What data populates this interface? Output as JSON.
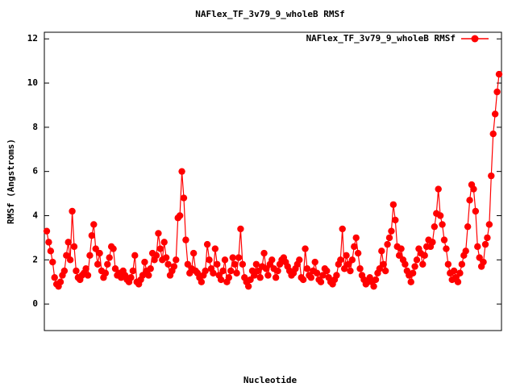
{
  "chart_data": {
    "type": "line",
    "title": "NAFlex_TF_3v79_9_wholeB RMSf",
    "x_label": "Nucleotide",
    "y_label": "RMSf (Angstroms)",
    "ylim": [
      -1.2,
      12.3
    ],
    "yticks": [
      0,
      2,
      4,
      6,
      8,
      10,
      12
    ],
    "legend": "top-right",
    "series": [
      {
        "name": "NAFlex_TF_3v79_9_wholeB RMSf",
        "color": "#ff0000",
        "values": [
          3.3,
          2.8,
          2.4,
          1.9,
          1.2,
          0.9,
          0.8,
          1.0,
          1.3,
          1.5,
          2.2,
          2.8,
          2.0,
          4.2,
          2.6,
          1.5,
          1.2,
          1.1,
          1.3,
          1.4,
          1.6,
          1.3,
          2.2,
          3.1,
          3.6,
          2.5,
          1.8,
          2.3,
          1.5,
          1.2,
          1.4,
          1.8,
          2.1,
          2.6,
          2.5,
          1.6,
          1.3,
          1.4,
          1.2,
          1.5,
          1.3,
          1.1,
          1.0,
          1.2,
          1.5,
          2.2,
          1.0,
          0.9,
          1.1,
          1.3,
          1.9,
          1.5,
          1.3,
          1.6,
          2.3,
          2.0,
          2.2,
          3.2,
          2.5,
          2.0,
          2.8,
          2.1,
          1.8,
          1.3,
          1.5,
          1.7,
          2.0,
          3.9,
          4.0,
          6.0,
          4.8,
          2.9,
          1.8,
          1.4,
          1.6,
          2.3,
          1.5,
          1.4,
          1.2,
          1.0,
          1.3,
          1.5,
          2.7,
          2.0,
          1.6,
          1.4,
          2.5,
          1.8,
          1.3,
          1.1,
          1.5,
          2.0,
          1.0,
          1.2,
          1.5,
          2.1,
          1.8,
          1.4,
          2.1,
          3.4,
          1.8,
          1.2,
          1.0,
          0.8,
          1.1,
          1.5,
          1.3,
          1.8,
          1.5,
          1.2,
          1.7,
          2.3,
          1.6,
          1.3,
          1.8,
          2.0,
          1.6,
          1.2,
          1.5,
          1.8,
          2.0,
          2.1,
          1.9,
          1.7,
          1.5,
          1.3,
          1.4,
          1.6,
          1.8,
          2.0,
          1.2,
          1.1,
          2.5,
          1.6,
          1.3,
          1.2,
          1.5,
          1.9,
          1.4,
          1.1,
          1.0,
          1.3,
          1.6,
          1.5,
          1.2,
          1.0,
          0.9,
          1.1,
          1.3,
          1.8,
          2.0,
          3.4,
          1.6,
          2.2,
          1.8,
          1.5,
          2.0,
          2.6,
          3.0,
          2.3,
          1.6,
          1.3,
          1.1,
          0.9,
          1.0,
          1.2,
          1.0,
          0.8,
          1.1,
          1.4,
          1.6,
          2.4,
          1.8,
          1.5,
          2.7,
          3.0,
          3.3,
          4.5,
          3.8,
          2.6,
          2.2,
          2.5,
          2.0,
          1.8,
          1.5,
          1.3,
          1.0,
          1.4,
          1.7,
          2.0,
          2.5,
          2.3,
          1.8,
          2.2,
          2.6,
          2.9,
          2.6,
          2.8,
          3.5,
          4.1,
          5.2,
          4.0,
          3.6,
          2.9,
          2.5,
          1.8,
          1.4,
          1.1,
          1.5,
          1.2,
          1.0,
          1.4,
          1.8,
          2.2,
          2.4,
          3.5,
          4.7,
          5.4,
          5.2,
          4.2,
          2.6,
          2.1,
          1.7,
          1.9,
          2.7,
          3.0,
          3.6,
          5.8,
          7.7,
          8.6,
          9.6,
          10.4
        ]
      }
    ]
  }
}
